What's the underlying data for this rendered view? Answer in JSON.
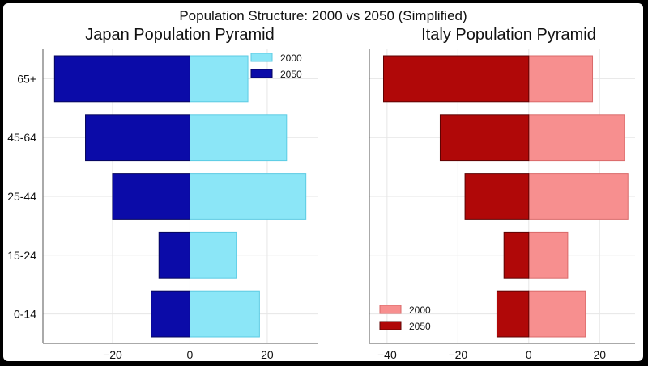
{
  "figure": {
    "title": "Population Structure: 2000 vs 2050 (Simplified)"
  },
  "chart_data": [
    {
      "type": "bar",
      "orientation": "horizontal",
      "title": "Japan Population Pyramid",
      "categories": [
        "0-14",
        "15-24",
        "25-44",
        "45-64",
        "65+"
      ],
      "series": [
        {
          "name": "2000",
          "values": [
            18,
            12,
            30,
            25,
            15
          ],
          "color": "#8be6f7",
          "edge": "#5ccbe3"
        },
        {
          "name": "2050",
          "values": [
            -10,
            -8,
            -20,
            -27,
            -35
          ],
          "color": "#0b0ba8",
          "edge": "#06065c"
        }
      ],
      "xlim": [
        -38,
        33
      ],
      "xticks": [
        -20,
        0,
        20
      ],
      "xtick_labels": [
        "−20",
        "0",
        "20"
      ],
      "grid": true,
      "legend": "top-right"
    },
    {
      "type": "bar",
      "orientation": "horizontal",
      "title": "Italy Population Pyramid",
      "categories": [
        "0-14",
        "15-24",
        "25-44",
        "45-64",
        "65+"
      ],
      "series": [
        {
          "name": "2000",
          "values": [
            16,
            11,
            28,
            27,
            18
          ],
          "color": "#f78f8f",
          "edge": "#d96a6a"
        },
        {
          "name": "2050",
          "values": [
            -9,
            -7,
            -18,
            -25,
            -41
          ],
          "color": "#b00808",
          "edge": "#5e0303"
        }
      ],
      "xlim": [
        -45,
        30
      ],
      "xticks": [
        -40,
        -20,
        0,
        20
      ],
      "xtick_labels": [
        "−40",
        "−20",
        "0",
        "20"
      ],
      "grid": true,
      "legend": "bottom-left"
    }
  ]
}
